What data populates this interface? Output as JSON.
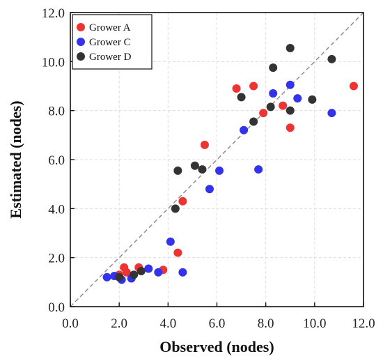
{
  "chart_data": {
    "type": "scatter",
    "title": "",
    "xlabel": "Observed (nodes)",
    "ylabel": "Estimated (nodes)",
    "xlim": [
      0,
      12
    ],
    "ylim": [
      0,
      12
    ],
    "xticks": [
      "0.0",
      "2.0",
      "4.0",
      "6.0",
      "8.0",
      "10.0",
      "12.0"
    ],
    "yticks": [
      "0.0",
      "2.0",
      "4.0",
      "6.0",
      "8.0",
      "10.0",
      "12.0"
    ],
    "grid": true,
    "reference_line": "1:1 dashed",
    "legend_position": "top-left",
    "series": [
      {
        "name": "Grower A",
        "color": "#ee3333",
        "points": [
          [
            2.0,
            1.3
          ],
          [
            2.2,
            1.6
          ],
          [
            2.3,
            1.4
          ],
          [
            2.8,
            1.6
          ],
          [
            3.8,
            1.5
          ],
          [
            4.4,
            2.2
          ],
          [
            4.6,
            4.3
          ],
          [
            5.5,
            6.6
          ],
          [
            6.8,
            8.9
          ],
          [
            7.5,
            9.0
          ],
          [
            7.9,
            7.9
          ],
          [
            8.7,
            8.2
          ],
          [
            9.0,
            7.3
          ],
          [
            11.6,
            9.0
          ]
        ]
      },
      {
        "name": "Grower C",
        "color": "#3333ee",
        "points": [
          [
            1.5,
            1.2
          ],
          [
            1.8,
            1.25
          ],
          [
            2.1,
            1.1
          ],
          [
            2.5,
            1.15
          ],
          [
            3.2,
            1.55
          ],
          [
            3.6,
            1.4
          ],
          [
            4.1,
            2.65
          ],
          [
            4.6,
            1.4
          ],
          [
            5.7,
            4.8
          ],
          [
            6.1,
            5.55
          ],
          [
            7.1,
            7.2
          ],
          [
            7.7,
            5.6
          ],
          [
            8.3,
            8.7
          ],
          [
            9.0,
            9.05
          ],
          [
            9.3,
            8.5
          ],
          [
            10.7,
            7.9
          ]
        ]
      },
      {
        "name": "Grower D",
        "color": "#333333",
        "points": [
          [
            2.0,
            1.2
          ],
          [
            2.6,
            1.3
          ],
          [
            2.9,
            1.45
          ],
          [
            4.3,
            4.0
          ],
          [
            4.4,
            5.55
          ],
          [
            5.1,
            5.75
          ],
          [
            5.4,
            5.6
          ],
          [
            7.0,
            8.55
          ],
          [
            7.5,
            7.55
          ],
          [
            8.2,
            8.15
          ],
          [
            8.3,
            9.75
          ],
          [
            9.0,
            10.55
          ],
          [
            9.0,
            8.0
          ],
          [
            9.9,
            8.45
          ],
          [
            10.7,
            10.1
          ]
        ]
      }
    ]
  }
}
